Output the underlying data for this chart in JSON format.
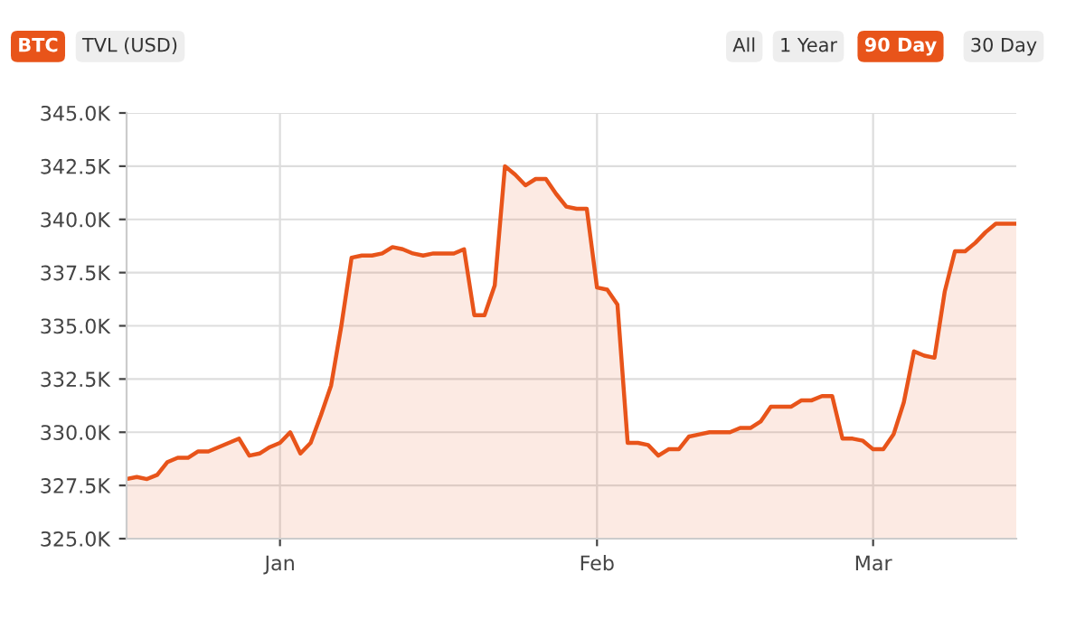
{
  "chart_data": {
    "type": "area",
    "color": "#e8541a",
    "annotations": [
      "BTC",
      "TVL (USD)",
      "All",
      "1 Year",
      "90 Day",
      "30 Day"
    ],
    "categories": [
      null,
      null,
      null,
      null,
      null,
      null,
      null,
      null,
      null,
      null,
      null,
      null,
      null,
      null,
      null,
      "Jan",
      null,
      null,
      null,
      null,
      null,
      null,
      null,
      null,
      null,
      null,
      null,
      null,
      null,
      null,
      null,
      null,
      null,
      null,
      null,
      null,
      null,
      null,
      null,
      null,
      null,
      null,
      null,
      null,
      null,
      null,
      "Feb",
      null,
      null,
      null,
      null,
      null,
      null,
      null,
      null,
      null,
      null,
      null,
      null,
      null,
      null,
      null,
      null,
      null,
      null,
      null,
      null,
      null,
      null,
      null,
      null,
      null,
      null,
      "Mar",
      null,
      null,
      null,
      null,
      null,
      null,
      null,
      null,
      null,
      null,
      null,
      null,
      null,
      null
    ],
    "values": [
      327.8,
      327.9,
      327.8,
      328.0,
      328.6,
      328.8,
      328.8,
      329.1,
      329.1,
      329.3,
      329.5,
      329.7,
      328.9,
      329.0,
      329.3,
      329.5,
      330.0,
      329.0,
      329.5,
      330.8,
      332.2,
      335.0,
      338.2,
      338.3,
      338.3,
      338.4,
      338.7,
      338.6,
      338.4,
      338.3,
      338.4,
      338.4,
      338.4,
      338.6,
      335.5,
      335.5,
      336.9,
      342.5,
      342.1,
      341.6,
      341.9,
      341.9,
      341.2,
      340.6,
      340.5,
      340.5,
      336.8,
      336.7,
      336.0,
      329.5,
      329.5,
      329.4,
      328.9,
      329.2,
      329.2,
      329.8,
      329.9,
      330.0,
      330.0,
      330.0,
      330.2,
      330.2,
      330.5,
      331.2,
      331.2,
      331.2,
      331.5,
      331.5,
      331.7,
      331.7,
      329.7,
      329.7,
      329.6,
      329.2,
      329.2,
      329.9,
      331.4,
      333.8,
      333.6,
      333.5,
      336.6,
      338.5,
      338.5,
      338.9,
      339.4,
      339.8,
      339.8,
      339.8
    ],
    "ylim": [
      325,
      345
    ],
    "yticks": [
      {
        "value": 325,
        "label": "325.0K"
      },
      {
        "value": 327.5,
        "label": "327.5K"
      },
      {
        "value": 330,
        "label": "330.0K"
      },
      {
        "value": 332.5,
        "label": "332.5K"
      },
      {
        "value": 335,
        "label": "335.0K"
      },
      {
        "value": 337.5,
        "label": "337.5K"
      },
      {
        "value": 340,
        "label": "340.0K"
      },
      {
        "value": 342.5,
        "label": "342.5K"
      },
      {
        "value": 345,
        "label": "345.0K"
      }
    ],
    "grid": true
  }
}
